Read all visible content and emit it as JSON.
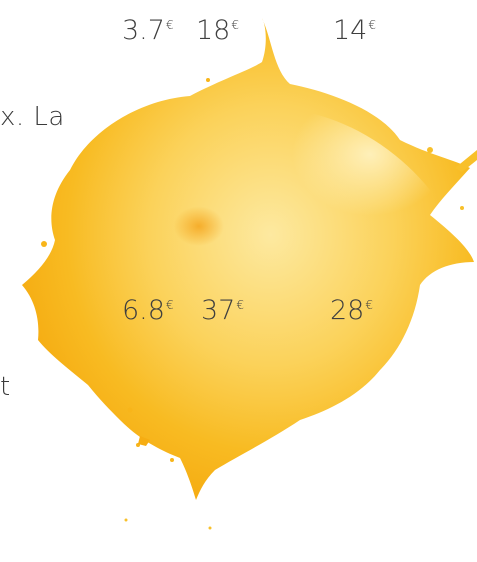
{
  "prices_top": [
    {
      "value": "3.7",
      "currency": "€"
    },
    {
      "value": "18",
      "currency": "€"
    },
    {
      "value": "14",
      "currency": "€"
    }
  ],
  "prices_middle": [
    {
      "value": "6.8",
      "currency": "€"
    },
    {
      "value": "37",
      "currency": "€"
    },
    {
      "value": "28",
      "currency": "€"
    }
  ],
  "cropped_text": {
    "line1": "x. La",
    "line2": "t"
  },
  "colors": {
    "splash_primary": "#f7b81c",
    "splash_light": "#fde38a",
    "splash_dark": "#f39a0b",
    "text": "#3b3b3b"
  }
}
